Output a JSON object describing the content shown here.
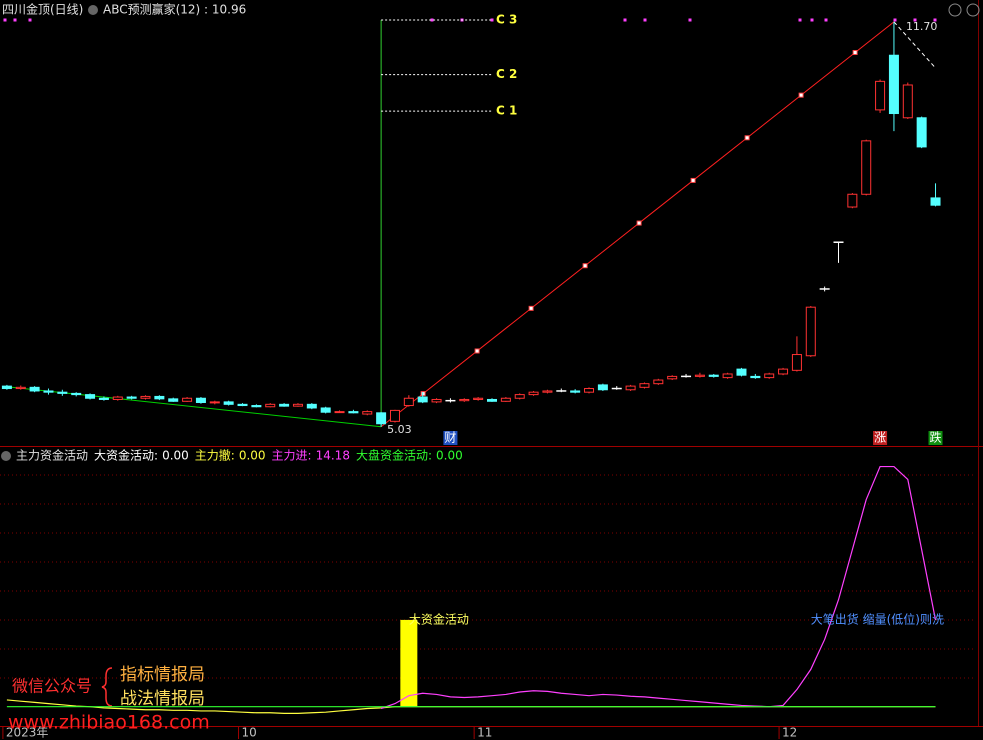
{
  "chart_data": [
    {
      "type": "candlestick",
      "title": "四川金顶(日线)",
      "indicator": "ABC预测赢家(12) : 10.96",
      "open": [
        5.7,
        5.66,
        5.68,
        5.62,
        5.6,
        5.58,
        5.56,
        5.5,
        5.48,
        5.52,
        5.5,
        5.53,
        5.49,
        5.45,
        5.5,
        5.43,
        5.44,
        5.4,
        5.38,
        5.36,
        5.4,
        5.37,
        5.4,
        5.34,
        5.27,
        5.28,
        5.24,
        5.26,
        5.12,
        5.38,
        5.52,
        5.44,
        5.46,
        5.46,
        5.48,
        5.48,
        5.45,
        5.5,
        5.56,
        5.6,
        5.62,
        5.62,
        5.6,
        5.72,
        5.66,
        5.64,
        5.68,
        5.74,
        5.82,
        5.86,
        5.86,
        5.88,
        5.84,
        5.98,
        5.86,
        5.84,
        5.9,
        5.96,
        6.2,
        7.3,
        8.07,
        8.65,
        8.86,
        10.25,
        11.15,
        10.12,
        10.12,
        8.8
      ],
      "high": [
        5.72,
        5.71,
        5.7,
        5.66,
        5.64,
        5.6,
        5.58,
        5.53,
        5.54,
        5.54,
        5.55,
        5.55,
        5.51,
        5.52,
        5.52,
        5.46,
        5.46,
        5.42,
        5.4,
        5.42,
        5.42,
        5.42,
        5.42,
        5.36,
        5.3,
        5.31,
        5.3,
        5.27,
        5.31,
        5.55,
        5.6,
        5.5,
        5.5,
        5.5,
        5.52,
        5.5,
        5.52,
        5.58,
        5.62,
        5.64,
        5.66,
        5.65,
        5.68,
        5.74,
        5.7,
        5.72,
        5.76,
        5.82,
        5.88,
        5.9,
        5.92,
        5.9,
        5.92,
        6.0,
        5.9,
        5.92,
        6.0,
        6.52,
        7.02,
        7.34,
        8.07,
        8.88,
        9.76,
        10.75,
        11.7,
        10.7,
        10.14,
        9.04
      ],
      "low": [
        5.64,
        5.64,
        5.6,
        5.56,
        5.54,
        5.53,
        5.48,
        5.46,
        5.46,
        5.48,
        5.48,
        5.47,
        5.44,
        5.44,
        5.41,
        5.4,
        5.38,
        5.37,
        5.35,
        5.35,
        5.36,
        5.36,
        5.32,
        5.25,
        5.26,
        5.25,
        5.22,
        5.03,
        5.1,
        5.36,
        5.42,
        5.42,
        5.43,
        5.44,
        5.46,
        5.44,
        5.44,
        5.48,
        5.54,
        5.58,
        5.6,
        5.58,
        5.58,
        5.62,
        5.64,
        5.62,
        5.66,
        5.72,
        5.8,
        5.84,
        5.84,
        5.84,
        5.82,
        5.86,
        5.82,
        5.82,
        5.88,
        5.94,
        6.18,
        7.26,
        7.73,
        8.63,
        8.84,
        10.2,
        9.9,
        10.1,
        9.62,
        8.66
      ],
      "close": [
        5.66,
        5.68,
        5.62,
        5.6,
        5.58,
        5.56,
        5.5,
        5.48,
        5.52,
        5.5,
        5.53,
        5.49,
        5.45,
        5.5,
        5.43,
        5.44,
        5.4,
        5.38,
        5.36,
        5.4,
        5.37,
        5.4,
        5.34,
        5.27,
        5.28,
        5.26,
        5.28,
        5.08,
        5.3,
        5.5,
        5.44,
        5.48,
        5.46,
        5.48,
        5.5,
        5.45,
        5.5,
        5.56,
        5.6,
        5.62,
        5.62,
        5.6,
        5.66,
        5.64,
        5.66,
        5.7,
        5.74,
        5.8,
        5.86,
        5.86,
        5.88,
        5.86,
        5.9,
        5.88,
        5.84,
        5.9,
        5.98,
        6.22,
        7.0,
        7.3,
        8.07,
        8.86,
        9.74,
        10.72,
        10.19,
        10.66,
        9.64,
        8.68
      ],
      "up_color": "#ff3232",
      "down_color": "#54ffff",
      "flat_color": "#ffffff",
      "ylim": [
        4.73,
        12.06
      ],
      "lines": [
        {
          "color": "#00d000",
          "x": [
            0,
            27
          ],
          "values": [
            5.69,
            5.03
          ]
        },
        {
          "color": "#ff2020",
          "x": [
            27,
            64
          ],
          "values": [
            5.03,
            11.7
          ]
        },
        {
          "color": "#ffffff",
          "x": [
            64,
            67
          ],
          "values": [
            11.7,
            10.94
          ],
          "dashed": true
        }
      ],
      "levels": [
        {
          "label": "C 3",
          "value": 11.73
        },
        {
          "label": "C 2",
          "value": 10.83
        },
        {
          "label": "C 1",
          "value": 10.23
        }
      ],
      "level_x": [
        27,
        35
      ],
      "annotations": [
        {
          "text": "5.03",
          "x": 27,
          "value": 5.03
        },
        {
          "text": "11.70",
          "x": 64,
          "value": 11.7
        }
      ],
      "signals": [
        {
          "text": "财",
          "x": 32,
          "color": "#2050c0"
        },
        {
          "text": "涨",
          "x": 63,
          "color": "#c02020"
        },
        {
          "text": "跌",
          "x": 67,
          "color": "#109010"
        }
      ]
    },
    {
      "type": "line",
      "title": "主力资金活动",
      "ylim": [
        -3,
        42.5
      ],
      "xticks": [
        {
          "value": 0,
          "label": "2023年"
        },
        {
          "value": 17,
          "label": "10"
        },
        {
          "value": 34,
          "label": "11"
        },
        {
          "value": 56,
          "label": "12"
        }
      ],
      "series": [
        {
          "name": "大资金活动:",
          "value_label": "0.00",
          "color": "#ffffff",
          "bar_color": "#ffff00",
          "kind": "bar",
          "values": [
            0,
            0,
            0,
            0,
            0,
            0,
            0,
            0,
            0,
            0,
            0,
            0,
            0,
            0,
            0,
            0,
            0,
            0,
            0,
            0,
            0,
            0,
            0,
            0,
            0,
            0,
            0,
            0,
            0,
            14.2,
            0,
            0,
            0,
            0,
            0,
            0,
            0,
            0,
            0,
            0,
            0,
            0,
            0,
            0,
            0,
            0,
            0,
            0,
            0,
            0,
            0,
            0,
            0,
            0,
            0,
            0,
            0,
            0,
            0,
            0,
            0,
            0,
            0,
            0,
            0,
            0,
            0,
            0
          ]
        },
        {
          "name": "主力撤:",
          "value_label": "0.00",
          "color": "#ffff40",
          "kind": "line",
          "values": [
            1.1,
            0.9,
            0.7,
            0.5,
            0.3,
            0.1,
            0.0,
            -0.2,
            -0.3,
            -0.4,
            -0.5,
            -0.5,
            -0.6,
            -0.6,
            -0.7,
            -0.7,
            -0.8,
            -0.9,
            -1.0,
            -1.0,
            -1.1,
            -1.1,
            -1.0,
            -0.9,
            -0.7,
            -0.5,
            -0.3,
            -0.2,
            0,
            0,
            0,
            0,
            0,
            0,
            0,
            0,
            0,
            0,
            0,
            0,
            0,
            0,
            0,
            0,
            0,
            0,
            0,
            0,
            0,
            0,
            0,
            0,
            0,
            0,
            0,
            0,
            0,
            0,
            0,
            0,
            0,
            0,
            0,
            0,
            0,
            0,
            0,
            0
          ]
        },
        {
          "name": "主力进:",
          "value_label": "14.18",
          "color": "#ff40ff",
          "kind": "line",
          "values": [
            null,
            null,
            null,
            null,
            null,
            null,
            null,
            null,
            null,
            null,
            null,
            null,
            null,
            null,
            null,
            null,
            null,
            null,
            null,
            null,
            null,
            null,
            null,
            null,
            null,
            null,
            null,
            -0.3,
            0.5,
            1.8,
            2.2,
            2.0,
            1.6,
            1.5,
            1.6,
            1.8,
            2.0,
            2.4,
            2.6,
            2.5,
            2.2,
            2.0,
            1.8,
            2.0,
            1.9,
            1.7,
            1.6,
            1.4,
            1.2,
            1.0,
            0.8,
            0.6,
            0.4,
            0.2,
            0.1,
            0.0,
            0.2,
            2.8,
            6.1,
            11.0,
            17.5,
            25.7,
            33.9,
            39.3,
            39.3,
            37.2,
            25.7,
            14.18
          ]
        },
        {
          "name": "大盘资金活动:",
          "value_label": "0.00",
          "color": "#30ff30",
          "kind": "line",
          "values": [
            0,
            0,
            0,
            0,
            0,
            0,
            0,
            0,
            0,
            0,
            0,
            0,
            0,
            0,
            0,
            0,
            0,
            0,
            0,
            0,
            0,
            0,
            0,
            0,
            0,
            0,
            0,
            0,
            0,
            0,
            0,
            0,
            0,
            0,
            0,
            0,
            0,
            0,
            0,
            0,
            0,
            0,
            0,
            0,
            0,
            0,
            0,
            0,
            0,
            0,
            0,
            0,
            0,
            0,
            0,
            0,
            0,
            0,
            0,
            0,
            0,
            0,
            0,
            0,
            0,
            0,
            0,
            0
          ]
        }
      ],
      "annotations": [
        {
          "text": "大资金活动",
          "x": 29,
          "value": 14.2,
          "color": "#ffff60"
        },
        {
          "text": "大笔出货 缩量(低位)则洗",
          "x": 58,
          "value": 14.2,
          "color": "#5090ff"
        }
      ],
      "watermark": {
        "line1": "微信公众号",
        "line2": "指标情报局",
        "line3": "战法情报局",
        "url": "www.zhibiao168.com"
      }
    }
  ]
}
